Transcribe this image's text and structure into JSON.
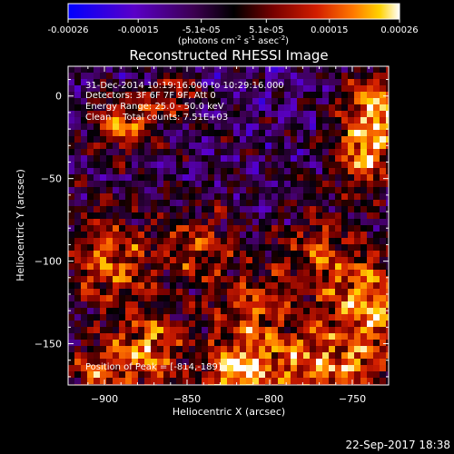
{
  "colorbar": {
    "tick_labels": [
      "-0.00026",
      "-0.00015",
      "-5.1e-05",
      "5.1e-05",
      "0.00015",
      "0.00026"
    ],
    "tick_values": [
      -0.00026,
      -0.00015,
      -5.1e-05,
      5.1e-05,
      0.00015,
      0.00026
    ],
    "range": [
      -0.00026,
      0.00026
    ],
    "units_prefix": "(photons cm",
    "units_exp1": "-2",
    "units_mid1": " s",
    "units_exp2": "-1",
    "units_mid2": " asec",
    "units_exp3": "-2",
    "units_suffix": ")"
  },
  "chart_data": {
    "type": "heatmap",
    "title": "Reconstructed RHESSI Image",
    "xlabel": "Heliocentric X (arcsec)",
    "ylabel": "Heliocentric Y (arcsec)",
    "xlim": [
      -922,
      -728
    ],
    "ylim": [
      -175,
      18
    ],
    "x_ticks": [
      -900,
      -850,
      -800,
      -750
    ],
    "y_ticks": [
      0,
      -50,
      -100,
      -150
    ],
    "x_tick_labels": [
      "−900",
      "−850",
      "−800",
      "−750"
    ],
    "y_tick_labels": [
      "0",
      "−50",
      "−100",
      "−150"
    ],
    "annotations": {
      "line1": "31-Dec-2014 10:19:16.000 to 10:29:16.000",
      "line2": "Detectors: 3F 6F 7F 9F, Att 0",
      "line3": "Energy Range: 25.0 - 50.0 keV",
      "line4": "Clean    Total counts: 7.51E+03",
      "peak": "Position of Peak = [-814,-189]"
    },
    "colormap": [
      "#0000ff",
      "#5a00c8",
      "#3c0050",
      "#000000",
      "#640000",
      "#c81400",
      "#ff6400",
      "#ffc800",
      "#ffffff"
    ]
  },
  "footer": {
    "date": "22-Sep-2017 18:38"
  }
}
